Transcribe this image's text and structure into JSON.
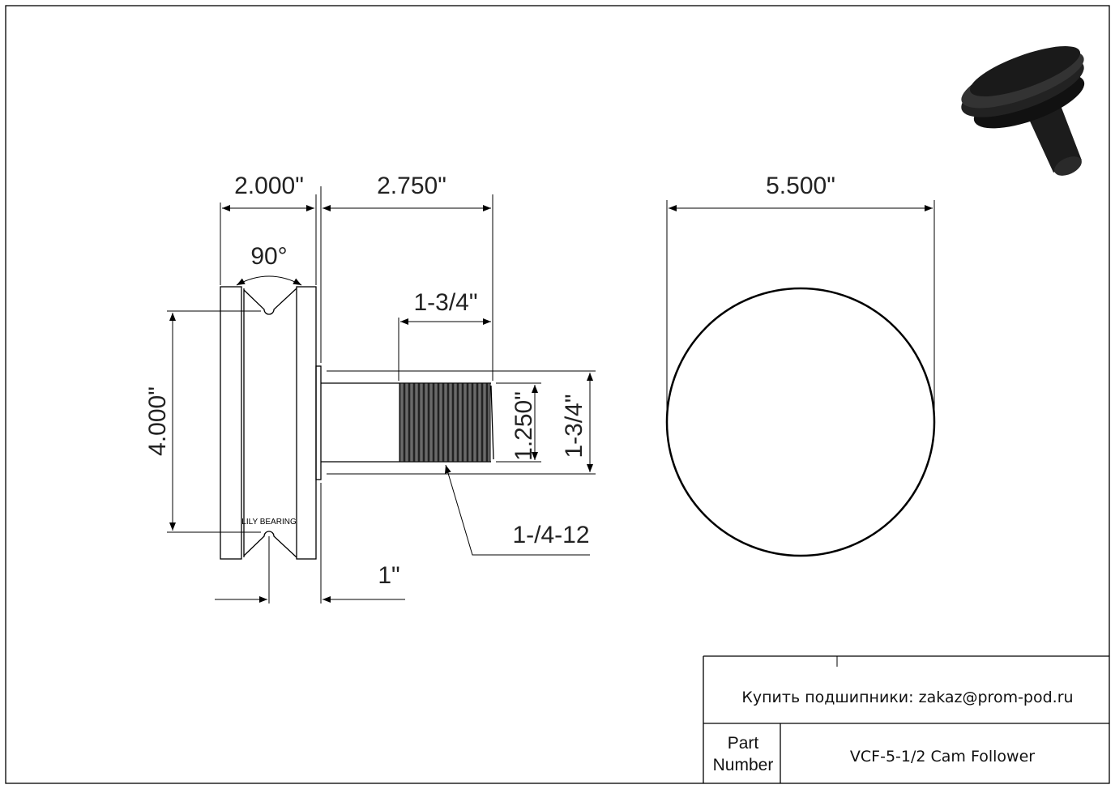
{
  "drawing": {
    "dimensions": {
      "flange_width": "2.000\"",
      "overall_length": "2.750\"",
      "groove_angle": "90°",
      "thread_length": "1-3/4\"",
      "height": "4.000\"",
      "stud_diameter": "1.250\"",
      "stud_overall": "1-3/4\"",
      "thread_spec": "1-/4-12",
      "offset": "1\"",
      "outer_diameter": "5.500\""
    },
    "logo_text": "LILY BEARING",
    "colors": {
      "line": "#000000",
      "thread": "#3a3a3a",
      "render": "#1c1c1c"
    }
  },
  "title_block": {
    "contact": "Купить подшипники: zakaz@prom-pod.ru",
    "part_label_line1": "Part",
    "part_label_line2": "Number",
    "part_number": "VCF-5-1/2 Cam Follower"
  }
}
